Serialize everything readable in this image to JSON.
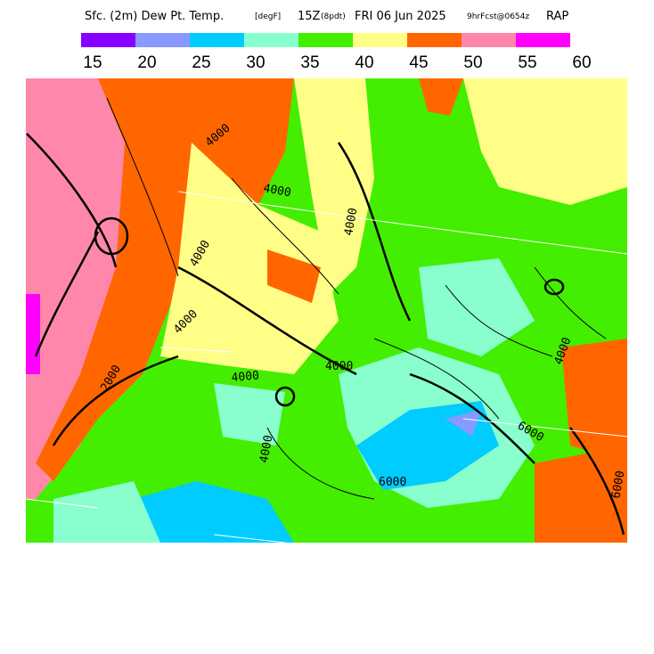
{
  "header": {
    "title": "Sfc. (2m) Dew Pt. Temp.",
    "units": "[degF]",
    "valid_hour": "15Z",
    "local": "(8pdt)",
    "date": "FRI 06 Jun 2025",
    "forecast": "9hrFcst@0654z",
    "model": "RAP"
  },
  "legend": {
    "colors": [
      "#8800ff",
      "#8899ff",
      "#00ccff",
      "#88ffcc",
      "#44ee00",
      "#ffff88",
      "#ff6600",
      "#ff88aa",
      "#ff00ff"
    ],
    "labels": [
      15,
      20,
      25,
      30,
      35,
      40,
      45,
      50,
      55,
      60
    ]
  },
  "contour_labels": [
    "4000",
    "4000",
    "4000",
    "4000",
    "4000",
    "4000",
    "4000",
    "4000",
    "4000",
    "6000",
    "6000",
    "6000",
    "2000"
  ]
}
